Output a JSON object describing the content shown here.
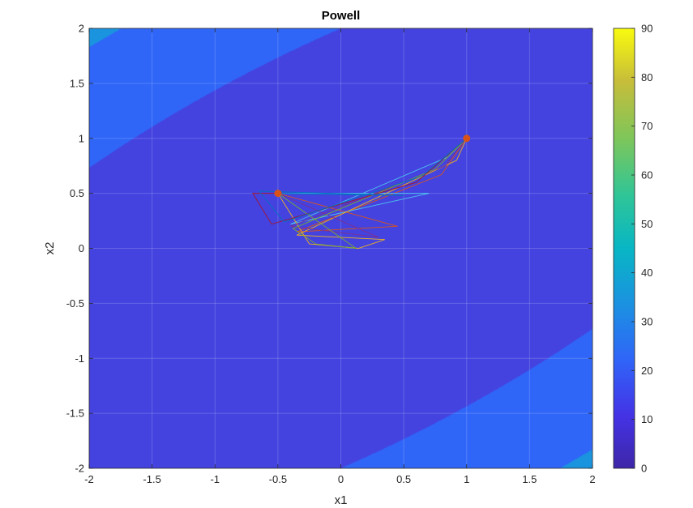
{
  "chart_data": {
    "type": "contour",
    "title": "Powell",
    "xlabel": "x1",
    "ylabel": "x2",
    "xlim": [
      -2,
      2
    ],
    "ylim": [
      -2,
      2
    ],
    "x_ticks": [
      -2,
      -1.5,
      -1,
      -0.5,
      0,
      0.5,
      1,
      1.5,
      2
    ],
    "y_ticks": [
      -2,
      -1.5,
      -1,
      -0.5,
      0,
      0.5,
      1,
      1.5,
      2
    ],
    "x_tick_labels": [
      "-2",
      "-1.5",
      "-1",
      "-0.5",
      "0",
      "0.5",
      "1",
      "1.5",
      "2"
    ],
    "y_tick_labels": [
      "-2",
      "-1.5",
      "-1",
      "-0.5",
      "0",
      "0.5",
      "1",
      "1.5",
      "2"
    ],
    "grid": true,
    "colorbar": {
      "range": [
        0,
        90
      ],
      "ticks": [
        0,
        10,
        20,
        30,
        40,
        50,
        60,
        70,
        80,
        90
      ],
      "tick_labels": [
        "0",
        "10",
        "20",
        "30",
        "40",
        "50",
        "60",
        "70",
        "80",
        "90"
      ]
    },
    "contour_levels": [
      0,
      10,
      20,
      30,
      40,
      50,
      60,
      70,
      80,
      90
    ],
    "level_colors": [
      "#3a2fa8",
      "#4443e0",
      "#2f66f8",
      "#1a94df",
      "#08b6c4",
      "#2fc597",
      "#7ec65a",
      "#c7bd3a",
      "#f4b93c"
    ],
    "function": "x1^2 - 2*x1*x2 + 2*x2^2 + 12",
    "markers": [
      {
        "name": "start-point",
        "x": 1.0,
        "y": 1.0,
        "color": "#d95319"
      },
      {
        "name": "end-point",
        "x": -0.5,
        "y": 0.5,
        "color": "#d95319"
      }
    ],
    "paths": [
      {
        "name": "path-1",
        "color": "#d95319",
        "points": [
          [
            1.0,
            1.0
          ],
          [
            0.8,
            0.67
          ],
          [
            -0.35,
            0.15
          ],
          [
            0.45,
            0.2
          ],
          [
            -0.5,
            0.5
          ]
        ]
      },
      {
        "name": "path-2",
        "color": "#4dbeee",
        "points": [
          [
            1.0,
            1.0
          ],
          [
            0.85,
            0.83
          ],
          [
            -0.4,
            0.22
          ],
          [
            0.7,
            0.5
          ],
          [
            -0.5,
            0.5
          ]
        ]
      },
      {
        "name": "path-3",
        "color": "#edb120",
        "points": [
          [
            1.0,
            1.0
          ],
          [
            0.92,
            0.8
          ],
          [
            -0.35,
            0.12
          ],
          [
            0.35,
            0.08
          ],
          [
            0.14,
            0.0
          ],
          [
            -0.25,
            0.04
          ],
          [
            -0.5,
            0.5
          ]
        ]
      },
      {
        "name": "path-4",
        "color": "#7e2f8e",
        "points": [
          [
            1.0,
            1.0
          ],
          [
            0.83,
            0.75
          ],
          [
            -0.4,
            0.2
          ],
          [
            0.3,
            0.1
          ],
          [
            -0.5,
            0.5
          ]
        ]
      },
      {
        "name": "path-5",
        "color": "#77ac30",
        "points": [
          [
            1.0,
            1.0
          ],
          [
            0.75,
            0.72
          ],
          [
            -0.38,
            0.18
          ],
          [
            -0.2,
            0.04
          ],
          [
            0.12,
            0.0
          ],
          [
            -0.5,
            0.5
          ]
        ]
      },
      {
        "name": "path-6",
        "color": "#a2142f",
        "points": [
          [
            1.0,
            1.0
          ],
          [
            0.6,
            0.6
          ],
          [
            -0.55,
            0.22
          ],
          [
            -0.7,
            0.5
          ],
          [
            -0.5,
            0.5
          ]
        ]
      },
      {
        "name": "path-7",
        "color": "#0072bd",
        "points": [
          [
            1.0,
            1.0
          ],
          [
            0.65,
            0.66
          ],
          [
            -0.45,
            0.24
          ],
          [
            -0.65,
            0.52
          ],
          [
            0.5,
            0.48
          ],
          [
            -0.5,
            0.5
          ]
        ]
      }
    ]
  }
}
